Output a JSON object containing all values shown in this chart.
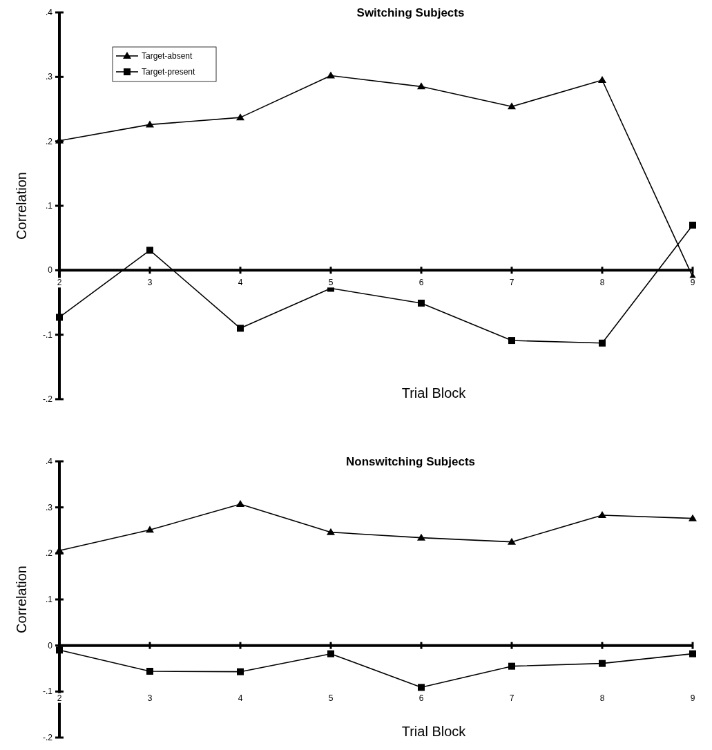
{
  "chart_data": [
    {
      "type": "line",
      "title": "Switching Subjects",
      "xlabel": "Trial Block",
      "ylabel": "Correlation",
      "x": [
        2,
        3,
        4,
        5,
        6,
        7,
        8,
        9
      ],
      "xlim": [
        2,
        9
      ],
      "xticks": [
        2,
        3,
        4,
        5,
        6,
        7,
        8,
        9
      ],
      "ylim": [
        -0.2,
        0.4
      ],
      "yticks": [
        {
          "value": -0.2,
          "label": "-.2"
        },
        {
          "value": -0.1,
          "label": "-.1"
        },
        0,
        {
          "value": 0.1,
          "label": ".1"
        },
        {
          "value": 0.2,
          "label": ".2"
        },
        {
          "value": 0.3,
          "label": ".3"
        },
        {
          "value": 0.4,
          "label": ".4"
        }
      ],
      "legend": "top left",
      "line_style": "solid",
      "series": [
        {
          "name": "Target-absent",
          "color": "#000000",
          "marker": "triangle",
          "values": [
            0.201,
            0.226,
            0.237,
            0.302,
            0.285,
            0.254,
            0.295,
            -0.01
          ]
        },
        {
          "name": "Target-present",
          "color": "#000000",
          "marker": "square",
          "values": [
            -0.073,
            0.031,
            -0.09,
            -0.028,
            -0.051,
            -0.109,
            -0.113,
            0.07
          ]
        }
      ]
    },
    {
      "type": "line",
      "title": "Nonswitching Subjects",
      "xlabel": "Trial Block",
      "ylabel": "Correlation",
      "x": [
        2,
        3,
        4,
        5,
        6,
        7,
        8,
        9
      ],
      "xlim": [
        2,
        9
      ],
      "xticks": [
        2,
        3,
        4,
        5,
        6,
        7,
        8,
        9
      ],
      "ylim": [
        -0.2,
        0.4
      ],
      "yticks": [
        {
          "value": -0.2,
          "label": "-.2"
        },
        {
          "value": -0.1,
          "label": "-.1"
        },
        0,
        {
          "value": 0.1,
          "label": ".1"
        },
        {
          "value": 0.2,
          "label": ".2"
        },
        {
          "value": 0.3,
          "label": ".3"
        },
        {
          "value": 0.4,
          "label": ".4"
        }
      ],
      "legend": false,
      "line_style": "solid",
      "series": [
        {
          "color": "#000000",
          "marker": "triangle",
          "values": [
            0.206,
            0.251,
            0.307,
            0.246,
            0.234,
            0.225,
            0.283,
            0.276
          ]
        },
        {
          "color": "#000000",
          "marker": "square",
          "values": [
            -0.01,
            -0.056,
            -0.057,
            -0.018,
            -0.091,
            -0.045,
            -0.039,
            -0.018
          ]
        }
      ]
    }
  ]
}
